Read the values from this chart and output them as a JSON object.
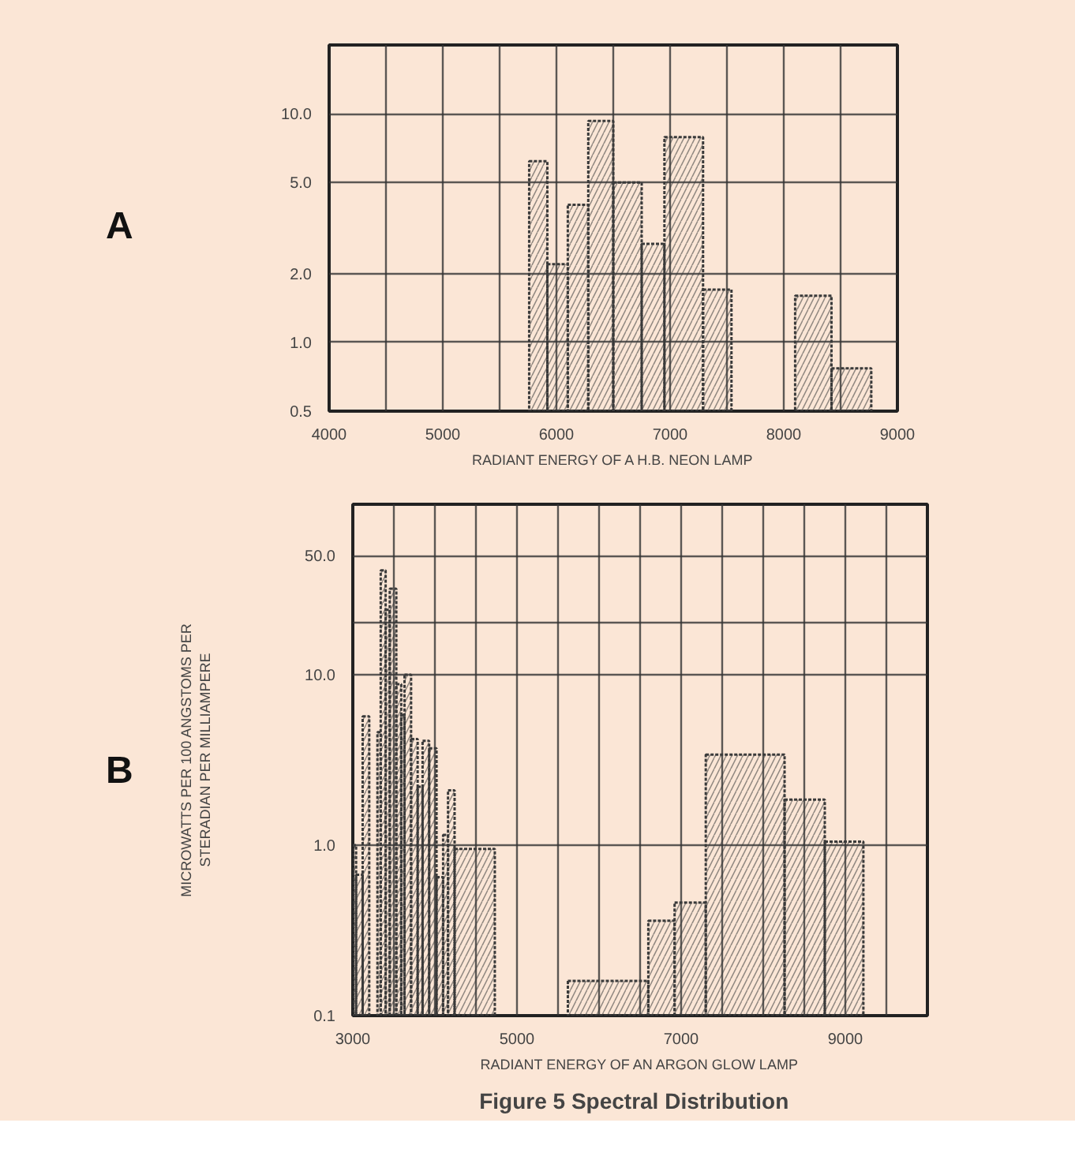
{
  "chart_data": [
    {
      "type": "histogram",
      "title": "A",
      "xlabel": "RADIANT ENERGY OF A H.B. NEON LAMP",
      "log": true,
      "grid": true,
      "color": "#3a3a3a",
      "bins": [
        5760,
        5920,
        6100,
        6280,
        6500,
        6750,
        6950,
        7290,
        7540,
        8100,
        8420,
        8770
      ],
      "values": [
        6.2,
        2.2,
        4.0,
        9.3,
        5.0,
        2.7,
        7.9,
        1.7,
        null,
        1.6,
        0.77
      ],
      "xlim": [
        4000,
        9000
      ],
      "xticks": [
        4000,
        {
          "value": 4500,
          "label": null
        },
        5000,
        {
          "value": 5500,
          "label": null
        },
        6000,
        {
          "value": 6500,
          "label": null
        },
        7000,
        {
          "value": 7500,
          "label": null
        },
        8000,
        {
          "value": 8500,
          "label": null
        },
        9000
      ],
      "ylim": [
        0.5,
        20
      ],
      "yticks": [
        {
          "value": 0.5,
          "label": "0.5"
        },
        {
          "value": 1,
          "label": "1.0"
        },
        {
          "value": 2,
          "label": "2.0"
        },
        {
          "value": 5,
          "label": "5.0"
        },
        {
          "value": 10,
          "label": "10.0"
        }
      ]
    },
    {
      "type": "histogram",
      "title": "B",
      "xlabel": "RADIANT ENERGY OF AN ARGON GLOW LAMP",
      "ylabel": "MICROWATTS PER 100 ANGSTOMS PER\nSTERADIAN PER MILLIAMPERE",
      "log": true,
      "grid": true,
      "color": "#3a3a3a",
      "annotations": [
        "Figure 5   Spectral Distribution"
      ],
      "bins": [
        3000,
        3040,
        3120,
        3200,
        3300,
        3340,
        3400,
        3450,
        3530,
        3590,
        3630,
        3710,
        3790,
        3850,
        3930,
        4020,
        4100,
        4160,
        4240,
        4730,
        5620,
        6600,
        6920,
        7300,
        8260,
        8750,
        9220
      ],
      "values": [
        1.0,
        0.67,
        5.7,
        null,
        4.6,
        41,
        24,
        32,
        8.8,
        5.8,
        10,
        4.2,
        2.2,
        4.1,
        3.7,
        0.65,
        1.15,
        2.1,
        0.95,
        null,
        0.16,
        0.36,
        0.46,
        3.4,
        1.85,
        1.05
      ],
      "xlim": [
        3000,
        10000
      ],
      "xticks": [
        3000,
        {
          "value": 3500,
          "label": null
        },
        {
          "value": 4000,
          "label": null
        },
        {
          "value": 4500,
          "label": null
        },
        5000,
        {
          "value": 5500,
          "label": null
        },
        {
          "value": 6000,
          "label": null
        },
        {
          "value": 6500,
          "label": null
        },
        7000,
        {
          "value": 7500,
          "label": null
        },
        {
          "value": 8000,
          "label": null
        },
        {
          "value": 8500,
          "label": null
        },
        9000,
        {
          "value": 9500,
          "label": null
        }
      ],
      "ylim": [
        0.1,
        100
      ],
      "yticks": [
        {
          "value": 0.1,
          "label": "0.1"
        },
        {
          "value": 1,
          "label": "1.0"
        },
        {
          "value": 10,
          "label": "10.0"
        },
        {
          "value": 20,
          "label": null
        },
        {
          "value": 50,
          "label": "50.0"
        }
      ]
    }
  ]
}
